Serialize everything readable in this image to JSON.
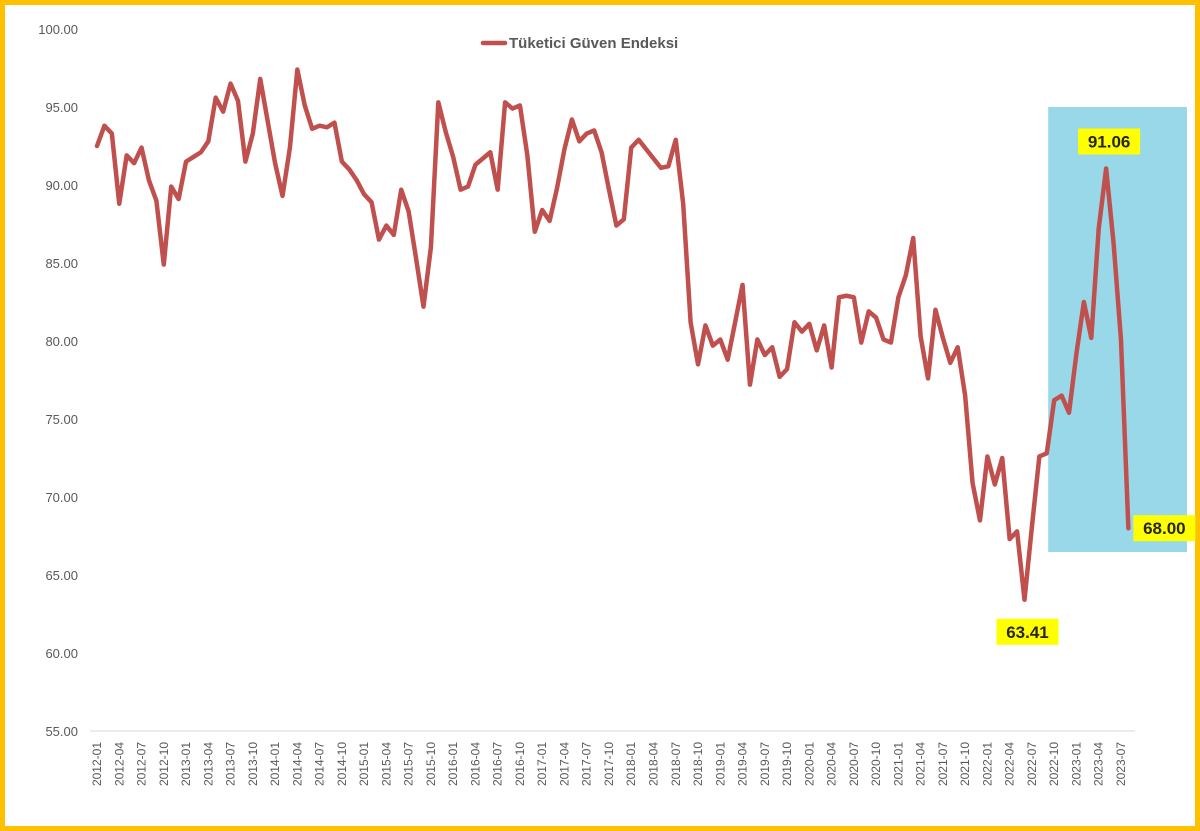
{
  "chart_data": {
    "type": "line",
    "title": "",
    "xlabel": "",
    "ylabel": "",
    "ylim": [
      55,
      100
    ],
    "yticks": [
      "55.00",
      "60.00",
      "65.00",
      "70.00",
      "75.00",
      "80.00",
      "85.00",
      "90.00",
      "95.00",
      "100.00"
    ],
    "legend": {
      "placement": "top-center",
      "entries": [
        "Tüketici Güven Endeksi"
      ]
    },
    "grid": false,
    "start_month": "2012-01",
    "tick_every_months": 3,
    "xtick_labels": [
      "2012-01",
      "2012-04",
      "2012-07",
      "2012-10",
      "2013-01",
      "2013-04",
      "2013-07",
      "2013-10",
      "2014-01",
      "2014-04",
      "2014-07",
      "2014-10",
      "2015-01",
      "2015-04",
      "2015-07",
      "2015-10",
      "2016-01",
      "2016-04",
      "2016-07",
      "2016-10",
      "2017-01",
      "2017-04",
      "2017-07",
      "2017-10",
      "2018-01",
      "2018-04",
      "2018-07",
      "2018-10",
      "2019-01",
      "2019-04",
      "2019-07",
      "2019-10",
      "2020-01",
      "2020-04",
      "2020-07",
      "2020-10",
      "2021-01",
      "2021-04",
      "2021-07",
      "2021-10",
      "2022-01",
      "2022-04",
      "2022-07",
      "2022-10",
      "2023-01",
      "2023-04",
      "2023-07"
    ],
    "series": [
      {
        "name": "Tüketici Güven Endeksi",
        "color": "#C0504D",
        "values": [
          92.5,
          93.8,
          93.3,
          88.8,
          91.9,
          91.4,
          92.4,
          90.3,
          89.0,
          84.9,
          89.9,
          89.1,
          91.5,
          91.8,
          92.1,
          92.8,
          95.6,
          94.7,
          96.5,
          95.4,
          91.5,
          93.3,
          96.8,
          94.1,
          91.4,
          89.3,
          92.4,
          97.4,
          95.1,
          93.6,
          93.8,
          93.7,
          94.0,
          91.5,
          91.0,
          90.3,
          89.4,
          88.9,
          86.5,
          87.4,
          86.8,
          89.7,
          88.3,
          85.3,
          82.2,
          86.0,
          95.3,
          93.4,
          91.8,
          89.7,
          89.9,
          91.3,
          91.7,
          92.1,
          89.7,
          95.3,
          94.9,
          95.1,
          91.9,
          87.0,
          88.4,
          87.7,
          89.8,
          92.3,
          94.2,
          92.8,
          93.3,
          93.5,
          92.1,
          89.7,
          87.4,
          87.8,
          92.4,
          92.9,
          92.3,
          91.7,
          91.1,
          91.2,
          92.9,
          88.8,
          81.2,
          78.5,
          81.0,
          79.7,
          80.1,
          78.8,
          81.2,
          83.6,
          77.2,
          80.1,
          79.1,
          79.6,
          77.7,
          78.2,
          81.2,
          80.6,
          81.1,
          79.4,
          81.0,
          78.3,
          82.8,
          82.9,
          82.8,
          79.9,
          81.9,
          81.5,
          80.1,
          79.9,
          82.8,
          84.2,
          86.6,
          80.3,
          77.6,
          82.0,
          80.2,
          78.6,
          79.6,
          76.5,
          70.9,
          68.5,
          72.6,
          70.8,
          72.5,
          67.3,
          67.8,
          63.41,
          68.1,
          72.6,
          72.8,
          76.2,
          76.5,
          75.4,
          79.2,
          82.5,
          80.2,
          87.2,
          91.06,
          86.3,
          80.1,
          68.0
        ]
      }
    ],
    "annotations": [
      {
        "label": "63.41",
        "index": 125,
        "position": "below"
      },
      {
        "label": "91.06",
        "index": 136,
        "position": "above"
      },
      {
        "label": "68.00",
        "index": 139,
        "position": "right"
      }
    ],
    "highlight": {
      "from_index": 129,
      "to_index": 139,
      "color": "#99D8E8"
    },
    "annotation_bg": "#FFFF00"
  }
}
